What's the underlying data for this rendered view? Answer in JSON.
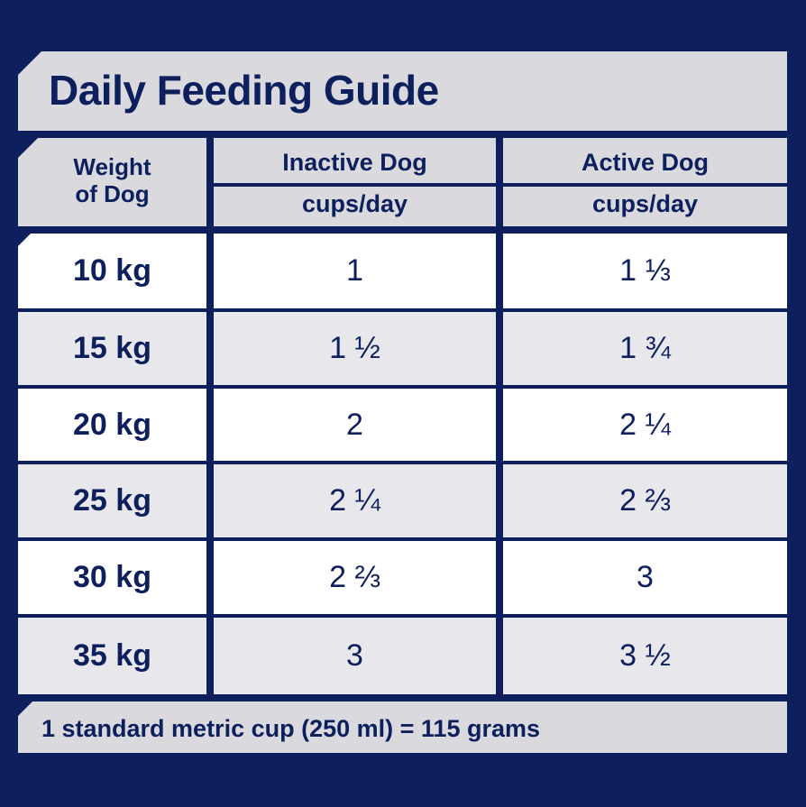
{
  "title": "Daily Feeding Guide",
  "header": {
    "weight_label": "Weight of Dog",
    "col1_title": "Inactive Dog",
    "col1_unit": "cups/day",
    "col2_title": "Active Dog",
    "col2_unit": "cups/day"
  },
  "rows": [
    {
      "weight": "10 kg",
      "inactive": "1",
      "active": "1 ⅓"
    },
    {
      "weight": "15 kg",
      "inactive": "1 ½",
      "active": "1 ¾"
    },
    {
      "weight": "20 kg",
      "inactive": "2",
      "active": "2 ¼"
    },
    {
      "weight": "25 kg",
      "inactive": "2 ¼",
      "active": "2 ⅔"
    },
    {
      "weight": "30 kg",
      "inactive": "2 ⅔",
      "active": "3"
    },
    {
      "weight": "35 kg",
      "inactive": "3",
      "active": "3 ½"
    }
  ],
  "footer": "1 standard metric cup (250 ml) = 115 grams",
  "colors": {
    "navy": "#0d1f5c",
    "header_grey": "#d9d9de",
    "row_white": "#ffffff",
    "row_grey": "#e8e8ec"
  }
}
